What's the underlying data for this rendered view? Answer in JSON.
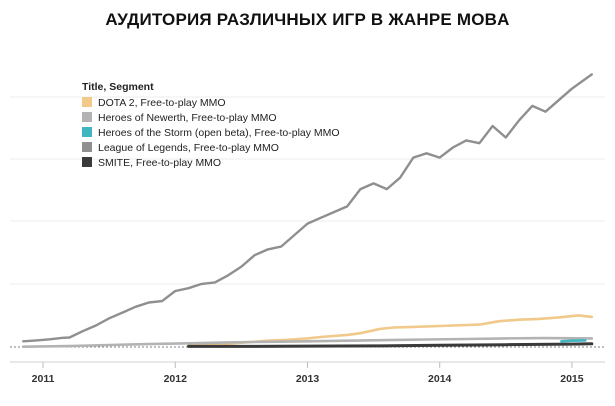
{
  "title": "АУДИТОРИЯ РАЗЛИЧНЫХ ИГР В ЖАНРЕ MOBA",
  "chart_data": {
    "type": "line",
    "title": "АУДИТОРИЯ РАЗЛИЧНЫХ ИГР В ЖАНРЕ MOBA",
    "xlabel": "",
    "ylabel": "",
    "x_ticks": [
      "2011",
      "2012",
      "2013",
      "2014",
      "2015"
    ],
    "xlim": [
      2010.75,
      2015.25
    ],
    "ylim": [
      0,
      100
    ],
    "grid": "horizontal",
    "legend_title": "Title, Segment",
    "legend_position": "top-left",
    "series": [
      {
        "name": "DOTA 2, Free-to-play MMO",
        "color": "#f0c98b",
        "x": [
          2012.1,
          2012.3,
          2012.5,
          2012.7,
          2012.85,
          2013.0,
          2013.1,
          2013.3,
          2013.4,
          2013.55,
          2013.65,
          2013.8,
          2014.0,
          2014.1,
          2014.3,
          2014.45,
          2014.6,
          2014.75,
          2014.9,
          2015.05,
          2015.15
        ],
        "values": [
          0.5,
          0.8,
          1.5,
          2.2,
          2.5,
          3.0,
          3.5,
          4.2,
          4.8,
          6.3,
          6.8,
          7.0,
          7.3,
          7.5,
          7.8,
          9.0,
          9.5,
          9.8,
          10.3,
          11.0,
          10.5
        ]
      },
      {
        "name": "Heroes of Newerth, Free-to-play MMO",
        "color": "#b3b3b3",
        "x": [
          2010.85,
          2011.2,
          2011.5,
          2011.8,
          2012.1,
          2012.4,
          2012.7,
          2013.0,
          2013.3,
          2013.6,
          2013.9,
          2014.2,
          2014.5,
          2014.8,
          2015.15
        ],
        "values": [
          0.1,
          0.3,
          0.7,
          1.0,
          1.3,
          1.6,
          1.8,
          2.0,
          2.2,
          2.4,
          2.6,
          2.8,
          3.0,
          3.1,
          3.0
        ]
      },
      {
        "name": "Heroes of the Storm (open beta), Free-to-play MMO",
        "color": "#3fb6c2",
        "x": [
          2014.92,
          2015.0,
          2015.1
        ],
        "values": [
          2.0,
          2.2,
          2.3
        ]
      },
      {
        "name": "League of Legends, Free-to-play MMO",
        "color": "#8f8f8f",
        "x": [
          2010.85,
          2010.95,
          2011.05,
          2011.15,
          2011.2,
          2011.3,
          2011.4,
          2011.5,
          2011.6,
          2011.7,
          2011.8,
          2011.9,
          2012.0,
          2012.1,
          2012.2,
          2012.3,
          2012.4,
          2012.5,
          2012.6,
          2012.7,
          2012.8,
          2012.9,
          2013.0,
          2013.1,
          2013.2,
          2013.3,
          2013.4,
          2013.5,
          2013.6,
          2013.7,
          2013.8,
          2013.9,
          2014.0,
          2014.1,
          2014.2,
          2014.3,
          2014.4,
          2014.5,
          2014.6,
          2014.7,
          2014.8,
          2014.9,
          2015.0,
          2015.15
        ],
        "values": [
          2.0,
          2.3,
          2.7,
          3.2,
          3.3,
          5.5,
          7.5,
          10.0,
          12.0,
          14.0,
          15.5,
          16.0,
          19.5,
          20.5,
          22.0,
          22.5,
          25.0,
          28.0,
          32.0,
          34.0,
          35.0,
          39.0,
          43.0,
          45.0,
          47.0,
          49.0,
          55.0,
          57.0,
          55.0,
          59.0,
          66.0,
          67.5,
          66.0,
          69.5,
          72.0,
          71.0,
          77.0,
          73.0,
          79.0,
          84.0,
          82.0,
          86.0,
          90.0,
          95.0
        ]
      },
      {
        "name": "SMITE, Free-to-play MMO",
        "color": "#3a3a3a",
        "x": [
          2012.1,
          2012.5,
          2013.0,
          2013.5,
          2014.0,
          2014.5,
          2015.0,
          2015.15
        ],
        "values": [
          0.2,
          0.2,
          0.3,
          0.4,
          0.6,
          0.8,
          1.0,
          1.1
        ]
      }
    ]
  }
}
